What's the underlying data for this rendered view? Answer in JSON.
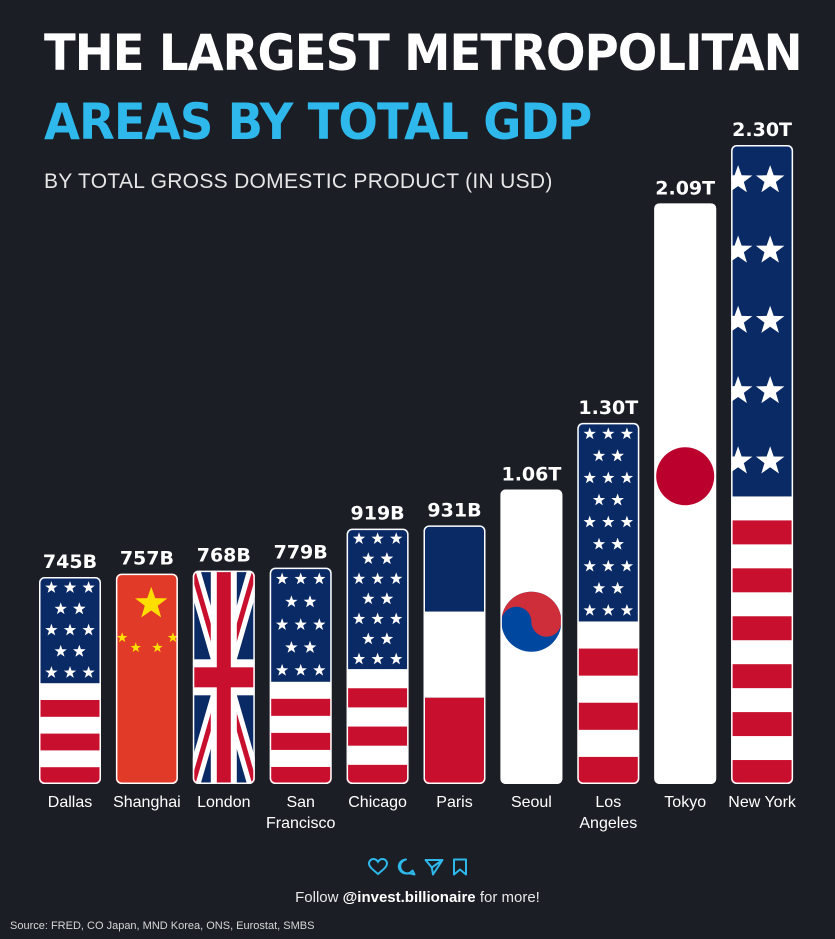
{
  "chart_data": {
    "type": "bar",
    "title_line1": "THE LARGEST METROPOLITAN",
    "title_line2": "AREAS BY TOTAL GDP",
    "subtitle": "BY TOTAL GROSS DOMESTIC PRODUCT (IN USD)",
    "categories": [
      "Dallas",
      "Shanghai",
      "London",
      "San Francisco",
      "Chicago",
      "Paris",
      "Seoul",
      "Los Angeles",
      "Tokyo",
      "New York"
    ],
    "category_lines": [
      [
        "Dallas"
      ],
      [
        "Shanghai"
      ],
      [
        "London"
      ],
      [
        "San",
        "Francisco"
      ],
      [
        "Chicago"
      ],
      [
        "Paris"
      ],
      [
        "Seoul"
      ],
      [
        "Los",
        "Angeles"
      ],
      [
        "Tokyo"
      ],
      [
        "New York"
      ]
    ],
    "values": [
      745,
      757,
      768,
      779,
      919,
      931,
      1060,
      1300,
      2090,
      2300
    ],
    "unit": "billion USD",
    "data_labels": [
      "745B",
      "757B",
      "768B",
      "779B",
      "919B",
      "931B",
      "1.06T",
      "1.30T",
      "2.09T",
      "2.30T"
    ],
    "bar_fills": [
      "flag-usa",
      "flag-china",
      "flag-uk",
      "flag-usa",
      "flag-usa",
      "flag-france",
      "flag-korea",
      "flag-usa",
      "flag-japan",
      "flag-usa"
    ],
    "ylim": [
      0,
      2300
    ],
    "grid": false,
    "legend": "none"
  },
  "colors": {
    "background": "#1b1e25",
    "title_white": "#ffffff",
    "title_blue": "#2eb8ec",
    "flag_red": "#c8102e",
    "flag_blue": "#0a2a66",
    "china_red": "#e23a28",
    "china_yellow": "#ffde00"
  },
  "footer": {
    "icons": [
      "heart-icon",
      "comment-icon",
      "share-icon",
      "bookmark-icon"
    ],
    "follow_prefix": "Follow ",
    "handle": "@invest.billionaire",
    "follow_suffix": " for more!",
    "source": "Source: FRED, CO Japan, MND Korea, ONS, Eurostat, SMBS"
  }
}
